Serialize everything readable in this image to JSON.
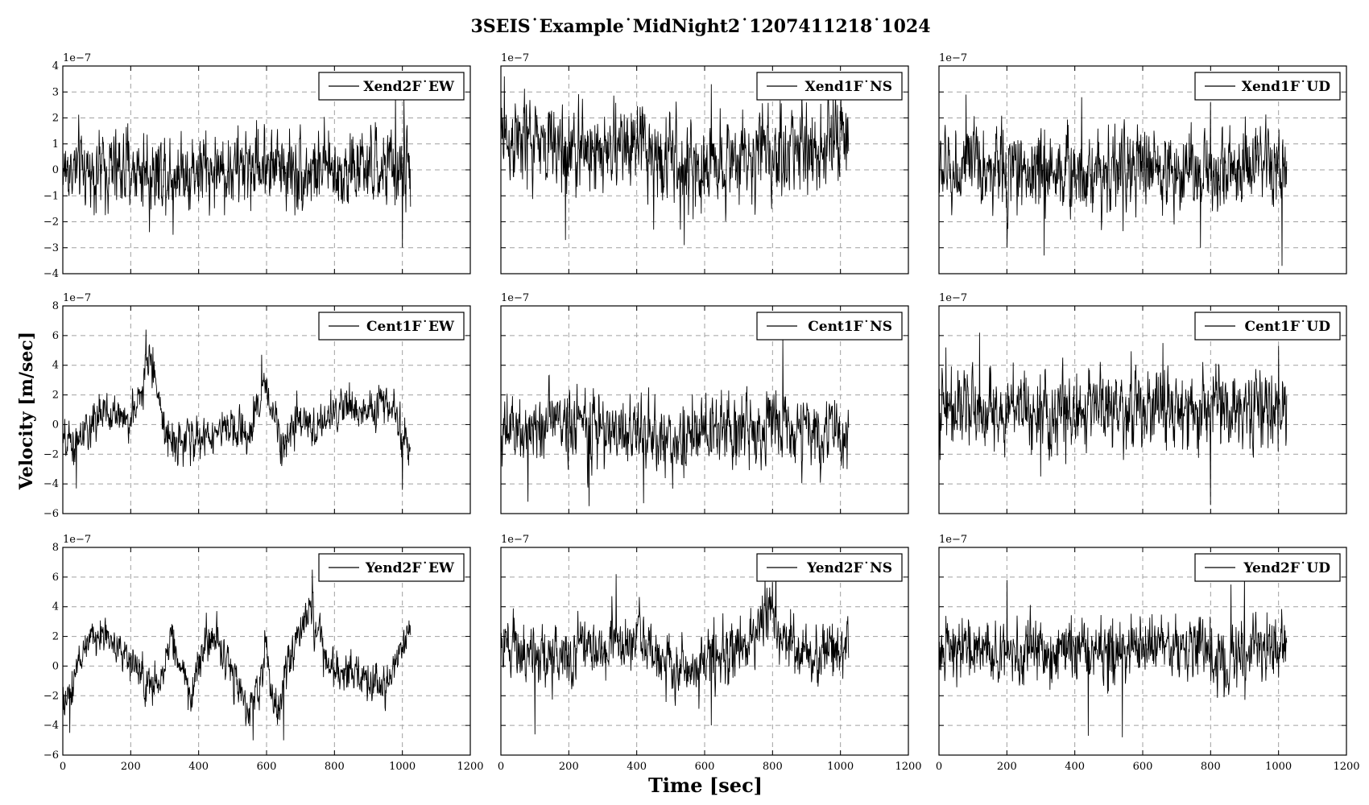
{
  "figure": {
    "title": "3SEIS˙Example˙MidNight2˙1207411218˙1024",
    "xlabel": "Time [sec]",
    "ylabel": "Velocity [m/sec]",
    "offset_label": "1e−7"
  },
  "chart_data": [
    {
      "type": "line",
      "row": 0,
      "col": 0,
      "legend": "Xend2F˙EW",
      "legend_position": "upper right",
      "xlim": [
        0,
        1200
      ],
      "ylim": [
        -4,
        4
      ],
      "yticks": [
        -4,
        -3,
        -2,
        -1,
        0,
        1,
        2,
        3,
        4
      ],
      "y_scale": 1e-07,
      "x_max_data": 1024,
      "mean": 0.0,
      "noise_amplitude": 0.75,
      "envelope": [
        [
          0,
          0.0
        ],
        [
          100,
          0.0
        ],
        [
          280,
          0.0
        ],
        [
          400,
          0.0
        ],
        [
          500,
          0.0
        ],
        [
          600,
          0.3
        ],
        [
          700,
          0.0
        ],
        [
          900,
          0.0
        ],
        [
          1024,
          0.0
        ]
      ],
      "spikes": [
        [
          255,
          -2.4
        ],
        [
          325,
          -2.5
        ],
        [
          980,
          2.9
        ],
        [
          1000,
          -3.0
        ],
        [
          1005,
          2.7
        ]
      ]
    },
    {
      "type": "line",
      "row": 0,
      "col": 1,
      "legend": "Xend1F˙NS",
      "legend_position": "upper right",
      "xlim": [
        0,
        1200
      ],
      "ylim": [
        -4,
        4
      ],
      "yticks": [
        -4,
        -3,
        -2,
        -1,
        0,
        1,
        2,
        3,
        4
      ],
      "y_scale": 1e-07,
      "x_max_data": 1024,
      "mean": 0.0,
      "noise_amplitude": 0.85,
      "envelope": [
        [
          0,
          1.2
        ],
        [
          100,
          1.0
        ],
        [
          200,
          0.7
        ],
        [
          300,
          0.8
        ],
        [
          400,
          0.9
        ],
        [
          500,
          0.4
        ],
        [
          550,
          -0.2
        ],
        [
          650,
          0.4
        ],
        [
          800,
          0.6
        ],
        [
          900,
          0.9
        ],
        [
          1024,
          1.2
        ]
      ],
      "spikes": [
        [
          10,
          3.6
        ],
        [
          190,
          -2.7
        ],
        [
          450,
          -2.3
        ],
        [
          540,
          -2.9
        ],
        [
          620,
          3.3
        ],
        [
          900,
          2.6
        ]
      ]
    },
    {
      "type": "line",
      "row": 0,
      "col": 2,
      "legend": "Xend1F˙UD",
      "legend_position": "upper right",
      "xlim": [
        0,
        1200
      ],
      "ylim": [
        -4,
        4
      ],
      "yticks": [
        -4,
        -3,
        -2,
        -1,
        0,
        1,
        2,
        3,
        4
      ],
      "y_scale": 1e-07,
      "x_max_data": 1024,
      "mean": 0.0,
      "noise_amplitude": 0.8,
      "envelope": [
        [
          0,
          0.0
        ],
        [
          1024,
          0.0
        ]
      ],
      "spikes": [
        [
          80,
          2.9
        ],
        [
          200,
          -3.0
        ],
        [
          310,
          -3.3
        ],
        [
          420,
          2.8
        ],
        [
          770,
          -3.0
        ],
        [
          800,
          2.6
        ],
        [
          1010,
          -3.7
        ]
      ]
    },
    {
      "type": "line",
      "row": 1,
      "col": 0,
      "legend": "Cent1F˙EW",
      "legend_position": "upper right",
      "xlim": [
        0,
        1200
      ],
      "ylim": [
        -6,
        8
      ],
      "yticks": [
        -6,
        -4,
        -2,
        0,
        2,
        4,
        6,
        8
      ],
      "y_scale": 1e-07,
      "x_max_data": 1024,
      "mean": 0.0,
      "noise_amplitude": 0.7,
      "envelope": [
        [
          0,
          -1.5
        ],
        [
          50,
          -1.2
        ],
        [
          100,
          0.5
        ],
        [
          150,
          0.8
        ],
        [
          200,
          0.3
        ],
        [
          230,
          2.0
        ],
        [
          250,
          4.5
        ],
        [
          270,
          3.5
        ],
        [
          300,
          -0.5
        ],
        [
          350,
          -1.2
        ],
        [
          400,
          -1.0
        ],
        [
          450,
          -0.5
        ],
        [
          500,
          -0.5
        ],
        [
          550,
          -0.8
        ],
        [
          580,
          1.5
        ],
        [
          600,
          2.8
        ],
        [
          620,
          0.5
        ],
        [
          650,
          -1.0
        ],
        [
          700,
          0.0
        ],
        [
          750,
          -0.2
        ],
        [
          800,
          1.0
        ],
        [
          850,
          1.2
        ],
        [
          900,
          0.8
        ],
        [
          950,
          1.5
        ],
        [
          980,
          0.5
        ],
        [
          1024,
          -1.8
        ]
      ],
      "spikes": [
        [
          245,
          6.4
        ],
        [
          585,
          4.7
        ],
        [
          1000,
          -4.4
        ],
        [
          40,
          -4.3
        ]
      ]
    },
    {
      "type": "line",
      "row": 1,
      "col": 1,
      "legend": "Cent1F˙NS",
      "legend_position": "upper right",
      "xlim": [
        0,
        1200
      ],
      "ylim": [
        -6,
        8
      ],
      "yticks": [
        -6,
        -4,
        -2,
        0,
        2,
        4,
        6,
        8
      ],
      "y_scale": 1e-07,
      "x_max_data": 1024,
      "mean": 0.0,
      "noise_amplitude": 1.2,
      "envelope": [
        [
          0,
          -1.0
        ],
        [
          100,
          0.0
        ],
        [
          200,
          0.3
        ],
        [
          300,
          -0.5
        ],
        [
          400,
          -0.5
        ],
        [
          500,
          -1.2
        ],
        [
          600,
          -0.5
        ],
        [
          700,
          -0.3
        ],
        [
          800,
          0.0
        ],
        [
          900,
          -0.5
        ],
        [
          1024,
          -0.8
        ]
      ],
      "spikes": [
        [
          80,
          -5.2
        ],
        [
          260,
          -5.5
        ],
        [
          420,
          -5.3
        ],
        [
          830,
          5.8
        ],
        [
          1020,
          -3.0
        ]
      ]
    },
    {
      "type": "line",
      "row": 1,
      "col": 2,
      "legend": "Cent1F˙UD",
      "legend_position": "upper right",
      "xlim": [
        0,
        1200
      ],
      "ylim": [
        -6,
        8
      ],
      "yticks": [
        -6,
        -4,
        -2,
        0,
        2,
        4,
        6,
        8
      ],
      "y_scale": 1e-07,
      "x_max_data": 1024,
      "mean": 0.0,
      "noise_amplitude": 1.3,
      "envelope": [
        [
          0,
          1.0
        ],
        [
          1024,
          1.0
        ]
      ],
      "spikes": [
        [
          20,
          5.2
        ],
        [
          120,
          6.2
        ],
        [
          300,
          -3.5
        ],
        [
          660,
          5.5
        ],
        [
          800,
          -5.4
        ],
        [
          1000,
          5.3
        ]
      ]
    },
    {
      "type": "line",
      "row": 2,
      "col": 0,
      "legend": "Yend2F˙EW",
      "legend_position": "upper right",
      "xlim": [
        0,
        1200
      ],
      "ylim": [
        -6,
        8
      ],
      "yticks": [
        -6,
        -4,
        -2,
        0,
        2,
        4,
        6,
        8
      ],
      "y_scale": 1e-07,
      "x_max_data": 1024,
      "mean": 0.0,
      "noise_amplitude": 0.7,
      "envelope": [
        [
          0,
          -2.5
        ],
        [
          30,
          -1.0
        ],
        [
          60,
          1.0
        ],
        [
          100,
          2.2
        ],
        [
          150,
          1.8
        ],
        [
          200,
          0.2
        ],
        [
          250,
          -1.5
        ],
        [
          280,
          -1.8
        ],
        [
          320,
          1.8
        ],
        [
          350,
          0.0
        ],
        [
          380,
          -2.0
        ],
        [
          400,
          0.0
        ],
        [
          420,
          1.5
        ],
        [
          450,
          1.8
        ],
        [
          500,
          -0.5
        ],
        [
          550,
          -3.0
        ],
        [
          580,
          -1.0
        ],
        [
          600,
          1.5
        ],
        [
          630,
          -3.5
        ],
        [
          660,
          0.0
        ],
        [
          700,
          2.5
        ],
        [
          730,
          3.8
        ],
        [
          760,
          2.0
        ],
        [
          780,
          -0.5
        ],
        [
          850,
          -0.5
        ],
        [
          900,
          -1.0
        ],
        [
          950,
          -1.0
        ],
        [
          1000,
          1.5
        ],
        [
          1024,
          2.5
        ]
      ],
      "spikes": [
        [
          735,
          6.5
        ],
        [
          560,
          -5.0
        ],
        [
          650,
          -5.0
        ],
        [
          20,
          -4.5
        ]
      ]
    },
    {
      "type": "line",
      "row": 2,
      "col": 1,
      "legend": "Yend2F˙NS",
      "legend_position": "upper right",
      "xlim": [
        0,
        1200
      ],
      "ylim": [
        -6,
        8
      ],
      "yticks": [
        -6,
        -4,
        -2,
        0,
        2,
        4,
        6,
        8
      ],
      "y_scale": 1e-07,
      "x_max_data": 1024,
      "mean": 0.0,
      "noise_amplitude": 1.0,
      "envelope": [
        [
          0,
          1.5
        ],
        [
          100,
          0.8
        ],
        [
          200,
          0.5
        ],
        [
          250,
          2.0
        ],
        [
          300,
          1.0
        ],
        [
          350,
          1.5
        ],
        [
          400,
          2.0
        ],
        [
          450,
          1.0
        ],
        [
          500,
          0.0
        ],
        [
          550,
          -1.0
        ],
        [
          600,
          0.5
        ],
        [
          650,
          0.8
        ],
        [
          700,
          1.0
        ],
        [
          750,
          2.0
        ],
        [
          780,
          4.0
        ],
        [
          800,
          4.2
        ],
        [
          820,
          2.0
        ],
        [
          900,
          0.5
        ],
        [
          1024,
          1.5
        ]
      ],
      "spikes": [
        [
          100,
          -4.6
        ],
        [
          340,
          6.2
        ],
        [
          620,
          -4.0
        ],
        [
          810,
          7.2
        ]
      ]
    },
    {
      "type": "line",
      "row": 2,
      "col": 2,
      "legend": "Yend2F˙UD",
      "legend_position": "upper right",
      "xlim": [
        0,
        1200
      ],
      "ylim": [
        -6,
        8
      ],
      "yticks": [
        -6,
        -4,
        -2,
        0,
        2,
        4,
        6,
        8
      ],
      "y_scale": 1e-07,
      "x_max_data": 1024,
      "mean": 0.0,
      "noise_amplitude": 1.1,
      "envelope": [
        [
          0,
          1.0
        ],
        [
          1024,
          1.0
        ]
      ],
      "spikes": [
        [
          200,
          5.8
        ],
        [
          440,
          -4.7
        ],
        [
          540,
          -4.8
        ],
        [
          860,
          5.5
        ],
        [
          900,
          6.2
        ]
      ]
    }
  ],
  "xticks": [
    0,
    200,
    400,
    600,
    800,
    1000,
    1200
  ]
}
